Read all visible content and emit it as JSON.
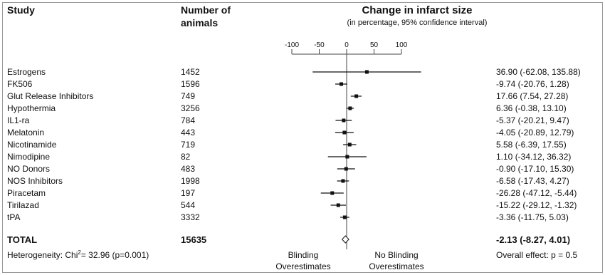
{
  "headers": {
    "study": "Study",
    "animals_line1": "Number of",
    "animals_line2": "animals",
    "change_title": "Change in infarct size",
    "change_subtitle": "(in percentage, 95% confidence interval)"
  },
  "colors": {
    "text": "#111111",
    "marker": "#111111",
    "axis": "#444444",
    "frame": "#9a9a9a"
  },
  "chart_data": {
    "type": "forest",
    "xlim": [
      -100,
      100
    ],
    "xticks": [
      "-100",
      "-50",
      "0",
      "50",
      "100"
    ],
    "xtick_values": [
      -100,
      -50,
      0,
      50,
      100
    ],
    "rows": [
      {
        "study": "Estrogens",
        "n": "1452",
        "est": 36.9,
        "lo": -62.08,
        "hi": 135.88,
        "ci_text": "36.90 (-62.08, 135.88)"
      },
      {
        "study": "FK506",
        "n": "1596",
        "est": -9.74,
        "lo": -20.76,
        "hi": 1.28,
        "ci_text": "-9.74 (-20.76, 1.28)"
      },
      {
        "study": "Glut Release Inhibitors",
        "n": "749",
        "est": 17.66,
        "lo": 7.54,
        "hi": 27.28,
        "ci_text": "17.66 (7.54, 27.28)"
      },
      {
        "study": "Hypothermia",
        "n": "3256",
        "est": 6.36,
        "lo": -0.38,
        "hi": 13.1,
        "ci_text": "6.36 (-0.38, 13.10)"
      },
      {
        "study": "IL1-ra",
        "n": "784",
        "est": -5.37,
        "lo": -20.21,
        "hi": 9.47,
        "ci_text": "-5.37 (-20.21, 9.47)"
      },
      {
        "study": "Melatonin",
        "n": "443",
        "est": -4.05,
        "lo": -20.89,
        "hi": 12.79,
        "ci_text": "-4.05 (-20.89, 12.79)"
      },
      {
        "study": "Nicotinamide",
        "n": "719",
        "est": 5.58,
        "lo": -6.39,
        "hi": 17.55,
        "ci_text": "5.58 (-6.39, 17.55)"
      },
      {
        "study": "Nimodipine",
        "n": "82",
        "est": 1.1,
        "lo": -34.12,
        "hi": 36.32,
        "ci_text": "1.10 (-34.12, 36.32)"
      },
      {
        "study": "NO Donors",
        "n": "483",
        "est": -0.9,
        "lo": -17.1,
        "hi": 15.3,
        "ci_text": "-0.90 (-17.10, 15.30)"
      },
      {
        "study": "NOS Inhibitors",
        "n": "1998",
        "est": -6.58,
        "lo": -17.43,
        "hi": 4.27,
        "ci_text": "-6.58 (-17.43, 4.27)"
      },
      {
        "study": "Piracetam",
        "n": "197",
        "est": -26.28,
        "lo": -47.12,
        "hi": -5.44,
        "ci_text": "-26.28 (-47.12, -5.44)"
      },
      {
        "study": "Tirilazad",
        "n": "544",
        "est": -15.22,
        "lo": -29.12,
        "hi": -1.32,
        "ci_text": "-15.22 (-29.12, -1.32)"
      },
      {
        "study": "tPA",
        "n": "3332",
        "est": -3.36,
        "lo": -11.75,
        "hi": 5.03,
        "ci_text": "-3.36 (-11.75, 5.03)"
      }
    ],
    "total": {
      "study": "TOTAL",
      "n": "15635",
      "est": -2.13,
      "lo": -8.27,
      "hi": 4.01,
      "ci_text": "-2.13 (-8.27, 4.01)"
    },
    "heterogeneity_prefix": "Heterogeneity: Chi",
    "heterogeneity_sup": "2",
    "heterogeneity_suffix": "= 32.96 (p=0.001)",
    "left_label_line1": "Blinding",
    "left_label_line2": "Overestimates",
    "right_label_line1": "No Blinding",
    "right_label_line2": "Overestimates",
    "overall_effect": "Overall effect: p = 0.5"
  }
}
